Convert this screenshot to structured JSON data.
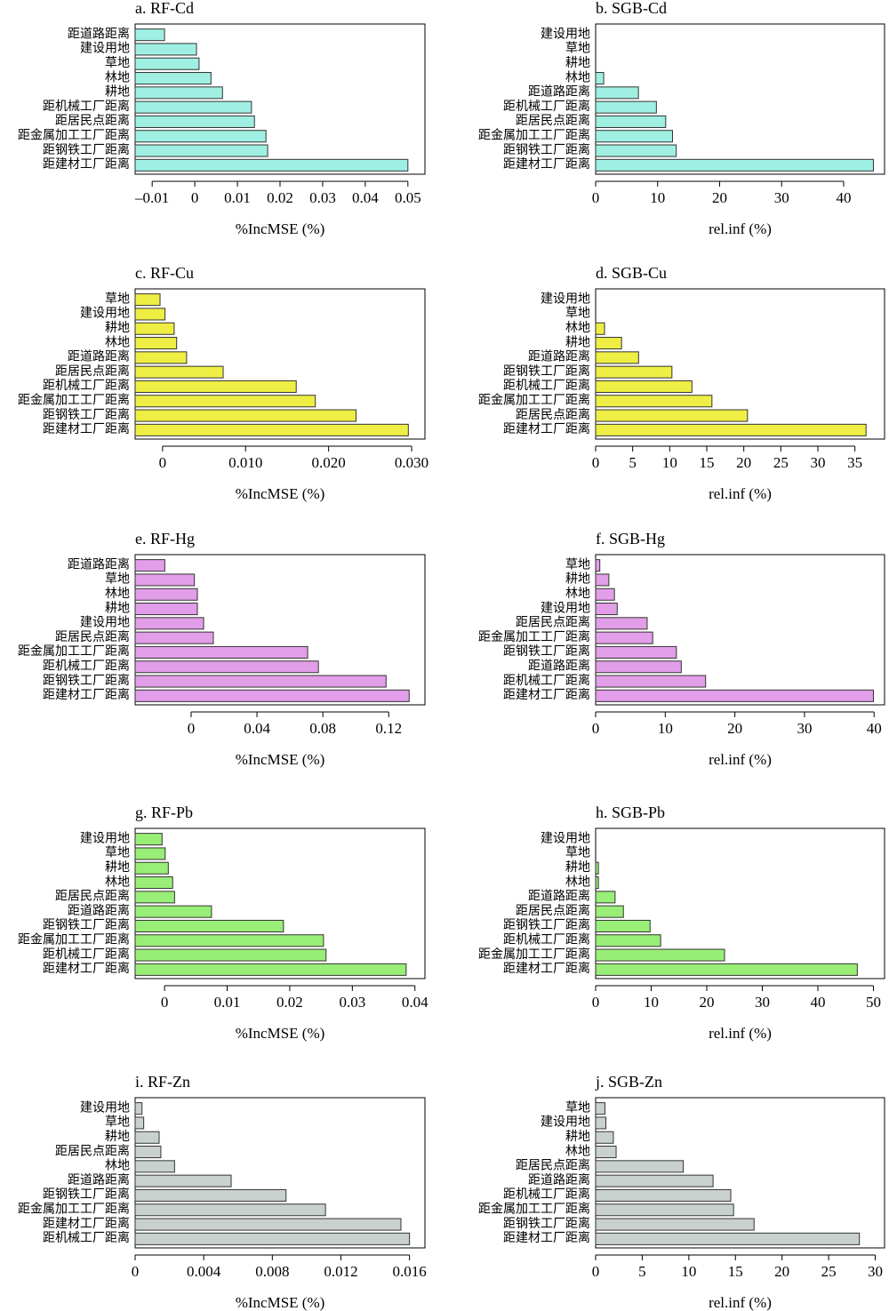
{
  "chart_data": [
    {
      "type": "bar",
      "title": "a. RF-Cd",
      "x_label": "%IncMSE (%)",
      "color": "#9ff0e2",
      "categories": [
        "距道路距离",
        "建设用地",
        "草地",
        "林地",
        "耕地",
        "距机械工厂距离",
        "距居民点距离",
        "距金属加工工厂距离",
        "距钢铁工厂距离",
        "距建材工厂距离"
      ],
      "values": [
        -0.0071,
        0.0004,
        0.001,
        0.0038,
        0.0065,
        0.0133,
        0.014,
        0.0167,
        0.0171,
        0.05
      ],
      "xlim": [
        -0.014,
        0.054
      ],
      "xticks": [
        {
          "value": -0.01,
          "label": "–0.01"
        },
        0,
        0.01,
        0.02,
        0.03,
        0.04,
        0.05
      ]
    },
    {
      "type": "bar",
      "title": "b. SGB-Cd",
      "x_label": "rel.inf (%)",
      "color": "#9ff0e2",
      "categories": [
        "建设用地",
        "草地",
        "耕地",
        "林地",
        "距道路距离",
        "距机械工厂距离",
        "距居民点距离",
        "距金属加工工厂距离",
        "距钢铁工厂距离",
        "距建材工厂距离"
      ],
      "values": [
        0,
        0,
        0,
        1.3,
        6.9,
        9.8,
        11.3,
        12.4,
        13.0,
        44.8
      ],
      "xlim": [
        0,
        46.6
      ],
      "xticks": [
        0,
        10,
        20,
        30,
        40
      ]
    },
    {
      "type": "bar",
      "title": "c. RF-Cu",
      "x_label": "%IncMSE (%)",
      "color": "#eeee44",
      "categories": [
        "草地",
        "建设用地",
        "耕地",
        "林地",
        "距道路距离",
        "距居民点距离",
        "距机械工厂距离",
        "距金属加工工厂距离",
        "距钢铁工厂距离",
        "距建材工厂距离"
      ],
      "values": [
        -0.0003,
        0.0003,
        0.0014,
        0.0017,
        0.0029,
        0.0073,
        0.0161,
        0.0184,
        0.0233,
        0.0296
      ],
      "xlim": [
        -0.0033,
        0.0316
      ],
      "xticks": [
        0,
        {
          "value": 0.01,
          "label": "0.010"
        },
        {
          "value": 0.02,
          "label": "0.020"
        },
        {
          "value": 0.03,
          "label": "0.030"
        }
      ]
    },
    {
      "type": "bar",
      "title": "d. SGB-Cu",
      "x_label": "rel.inf (%)",
      "color": "#eeee44",
      "categories": [
        "建设用地",
        "草地",
        "林地",
        "耕地",
        "距道路距离",
        "距钢铁工厂距离",
        "距机械工厂距离",
        "距金属加工工厂距离",
        "距居民点距离",
        "距建材工厂距离"
      ],
      "values": [
        0,
        0,
        1.2,
        3.5,
        5.8,
        10.3,
        13.0,
        15.7,
        20.5,
        36.5
      ],
      "xlim": [
        0,
        39
      ],
      "xticks": [
        0,
        5,
        10,
        15,
        20,
        25,
        30,
        35
      ]
    },
    {
      "type": "bar",
      "title": "e. RF-Hg",
      "x_label": "%IncMSE (%)",
      "color": "#e29ee8",
      "categories": [
        "距道路距离",
        "草地",
        "林地",
        "耕地",
        "建设用地",
        "距居民点距离",
        "距金属加工工厂距离",
        "距机械工厂距离",
        "距钢铁工厂距离",
        "距建材工厂距离"
      ],
      "values": [
        -0.016,
        0.002,
        0.0038,
        0.0038,
        0.0076,
        0.0135,
        0.0708,
        0.0773,
        0.1184,
        0.1324
      ],
      "xlim": [
        -0.034,
        0.142
      ],
      "xticks": [
        0,
        0.04,
        0.08,
        0.12
      ]
    },
    {
      "type": "bar",
      "title": "f. SGB-Hg",
      "x_label": "rel.inf (%)",
      "color": "#e29ee8",
      "categories": [
        "草地",
        "耕地",
        "林地",
        "建设用地",
        "距居民点距离",
        "距金属加工工厂距离",
        "距钢铁工厂距离",
        "距道路距离",
        "距机械工厂距离",
        "距建材工厂距离"
      ],
      "values": [
        0.6,
        1.9,
        2.7,
        3.1,
        7.4,
        8.2,
        11.6,
        12.3,
        15.8,
        39.9
      ],
      "xlim": [
        0,
        41.5
      ],
      "xticks": [
        0,
        10,
        20,
        30,
        40
      ]
    },
    {
      "type": "bar",
      "title": "g. RF-Pb",
      "x_label": "%IncMSE (%)",
      "color": "#99ee77",
      "categories": [
        "建设用地",
        "草地",
        "耕地",
        "林地",
        "距居民点距离",
        "距道路距离",
        "距钢铁工厂距离",
        "距金属加工工厂距离",
        "距机械工厂距离",
        "距建材工厂距离"
      ],
      "values": [
        -0.0004,
        0.0001,
        0.0006,
        0.0013,
        0.0016,
        0.0075,
        0.019,
        0.0254,
        0.0258,
        0.0386
      ],
      "xlim": [
        -0.0047,
        0.0416
      ],
      "xticks": [
        0,
        0.01,
        0.02,
        0.03,
        0.04
      ]
    },
    {
      "type": "bar",
      "title": "h. SGB-Pb",
      "x_label": "rel.inf (%)",
      "color": "#99ee77",
      "categories": [
        "建设用地",
        "草地",
        "耕地",
        "林地",
        "距道路距离",
        "距居民点距离",
        "距钢铁工厂距离",
        "距机械工厂距离",
        "距金属加工工厂距离",
        "距建材工厂距离"
      ],
      "values": [
        0,
        0,
        0.5,
        0.5,
        3.5,
        5.0,
        9.8,
        11.7,
        23.2,
        47.1
      ],
      "xlim": [
        0,
        52
      ],
      "xticks": [
        0,
        10,
        20,
        30,
        40,
        50
      ]
    },
    {
      "type": "bar",
      "title": "i. RF-Zn",
      "x_label": "%IncMSE (%)",
      "color": "#c9d1ce",
      "categories": [
        "建设用地",
        "草地",
        "耕地",
        "距居民点距离",
        "林地",
        "距道路距离",
        "距钢铁工厂距离",
        "距金属加工工厂距离",
        "距建材工厂距离",
        "距机械工厂距离"
      ],
      "values": [
        0.0004,
        0.0005,
        0.0014,
        0.0015,
        0.0023,
        0.0056,
        0.0088,
        0.0111,
        0.0155,
        0.016
      ],
      "xlim": [
        0,
        0.0169
      ],
      "xticks": [
        0,
        0.004,
        0.008,
        0.012,
        0.016
      ]
    },
    {
      "type": "bar",
      "title": "j. SGB-Zn",
      "x_label": "rel.inf (%)",
      "color": "#c9d1ce",
      "categories": [
        "草地",
        "建设用地",
        "耕地",
        "林地",
        "距居民点距离",
        "距道路距离",
        "距机械工厂距离",
        "距金属加工工厂距离",
        "距钢铁工厂距离",
        "距建材工厂距离"
      ],
      "values": [
        1.0,
        1.1,
        1.9,
        2.2,
        9.4,
        12.6,
        14.5,
        14.8,
        17.0,
        28.3
      ],
      "xlim": [
        0,
        31
      ],
      "xticks": [
        0,
        5,
        10,
        15,
        20,
        25,
        30
      ]
    }
  ]
}
